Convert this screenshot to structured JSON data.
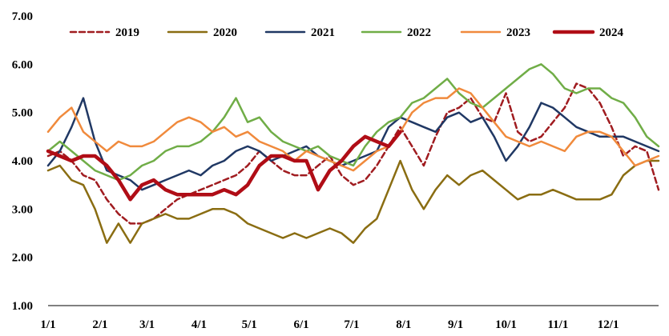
{
  "chart_data": {
    "type": "line",
    "title": "",
    "xlabel": "",
    "ylabel": "",
    "ylim": [
      1.0,
      7.0
    ],
    "yticks": [
      1.0,
      2.0,
      3.0,
      4.0,
      5.0,
      6.0,
      7.0
    ],
    "ytick_labels": [
      "1.00",
      "2.00",
      "3.00",
      "4.00",
      "5.00",
      "6.00",
      "7.00"
    ],
    "xlim": [
      1,
      53
    ],
    "xticks": [
      1,
      5.43,
      9.43,
      13.86,
      18.14,
      22.57,
      26.86,
      31.29,
      35.71,
      40,
      44.43,
      48.71
    ],
    "xtick_labels": [
      "1/1",
      "2/1",
      "3/1",
      "4/1",
      "5/1",
      "6/1",
      "7/1",
      "8/1",
      "9/1",
      "10/1",
      "11/1",
      "12/1"
    ],
    "grid": false,
    "legend_position": "top",
    "series": [
      {
        "name": "2019",
        "color": "#a01c20",
        "dash": true,
        "width": 2.5,
        "x": [
          1,
          2,
          3,
          4,
          5,
          6,
          7,
          8,
          9,
          10,
          11,
          12,
          13,
          14,
          15,
          16,
          17,
          18,
          19,
          20,
          21,
          22,
          23,
          24,
          25,
          26,
          27,
          28,
          29,
          30,
          31,
          32,
          33,
          34,
          35,
          36,
          37,
          38,
          39,
          40,
          41,
          42,
          43,
          44,
          45,
          46,
          47,
          48,
          49,
          50,
          51,
          52,
          53
        ],
        "y": [
          4.1,
          4.2,
          4.0,
          3.7,
          3.6,
          3.2,
          2.9,
          2.7,
          2.7,
          2.8,
          3.0,
          3.2,
          3.3,
          3.4,
          3.5,
          3.6,
          3.7,
          3.9,
          4.2,
          4.0,
          3.8,
          3.7,
          3.7,
          3.9,
          4.1,
          3.7,
          3.5,
          3.6,
          3.9,
          4.3,
          4.7,
          4.3,
          3.9,
          4.5,
          5.0,
          5.1,
          5.3,
          4.9,
          4.8,
          5.4,
          4.6,
          4.4,
          4.5,
          4.8,
          5.1,
          5.6,
          5.5,
          5.2,
          4.7,
          4.1,
          4.3,
          4.2,
          3.4
        ]
      },
      {
        "name": "2020",
        "color": "#8a6d12",
        "dash": false,
        "width": 2.5,
        "x": [
          1,
          2,
          3,
          4,
          5,
          6,
          7,
          8,
          9,
          10,
          11,
          12,
          13,
          14,
          15,
          16,
          17,
          18,
          19,
          20,
          21,
          22,
          23,
          24,
          25,
          26,
          27,
          28,
          29,
          30,
          31,
          32,
          33,
          34,
          35,
          36,
          37,
          38,
          39,
          40,
          41,
          42,
          43,
          44,
          45,
          46,
          47,
          48,
          49,
          50,
          51,
          52,
          53
        ],
        "y": [
          3.8,
          3.9,
          3.6,
          3.5,
          3.0,
          2.3,
          2.7,
          2.3,
          2.7,
          2.8,
          2.9,
          2.8,
          2.8,
          2.9,
          3.0,
          3.0,
          2.9,
          2.7,
          2.6,
          2.5,
          2.4,
          2.5,
          2.4,
          2.5,
          2.6,
          2.5,
          2.3,
          2.6,
          2.8,
          3.4,
          4.0,
          3.4,
          3.0,
          3.4,
          3.7,
          3.5,
          3.7,
          3.8,
          3.6,
          3.4,
          3.2,
          3.3,
          3.3,
          3.4,
          3.3,
          3.2,
          3.2,
          3.2,
          3.3,
          3.7,
          3.9,
          4.0,
          4.0
        ]
      },
      {
        "name": "2021",
        "color": "#203864",
        "dash": false,
        "width": 2.5,
        "x": [
          1,
          2,
          3,
          4,
          5,
          6,
          7,
          8,
          9,
          10,
          11,
          12,
          13,
          14,
          15,
          16,
          17,
          18,
          19,
          20,
          21,
          22,
          23,
          24,
          25,
          26,
          27,
          28,
          29,
          30,
          31,
          32,
          33,
          34,
          35,
          36,
          37,
          38,
          39,
          40,
          41,
          42,
          43,
          44,
          45,
          46,
          47,
          48,
          49,
          50,
          51,
          52,
          53
        ],
        "y": [
          3.9,
          4.2,
          4.7,
          5.3,
          4.4,
          3.8,
          3.7,
          3.6,
          3.4,
          3.5,
          3.6,
          3.7,
          3.8,
          3.7,
          3.9,
          4.0,
          4.2,
          4.3,
          4.2,
          4.0,
          4.1,
          4.2,
          4.3,
          4.1,
          4.0,
          3.9,
          4.0,
          4.1,
          4.2,
          4.7,
          4.9,
          4.8,
          4.7,
          4.6,
          4.9,
          5.0,
          4.8,
          4.9,
          4.5,
          4.0,
          4.3,
          4.7,
          5.2,
          5.1,
          4.9,
          4.7,
          4.6,
          4.5,
          4.5,
          4.5,
          4.4,
          4.3,
          4.2
        ]
      },
      {
        "name": "2022",
        "color": "#70ad47",
        "dash": false,
        "width": 2.5,
        "x": [
          1,
          2,
          3,
          4,
          5,
          6,
          7,
          8,
          9,
          10,
          11,
          12,
          13,
          14,
          15,
          16,
          17,
          18,
          19,
          20,
          21,
          22,
          23,
          24,
          25,
          26,
          27,
          28,
          29,
          30,
          31,
          32,
          33,
          34,
          35,
          36,
          37,
          38,
          39,
          40,
          41,
          42,
          43,
          44,
          45,
          46,
          47,
          48,
          49,
          50,
          51,
          52,
          53
        ],
        "y": [
          4.2,
          4.4,
          4.2,
          4.0,
          3.8,
          3.7,
          3.6,
          3.7,
          3.9,
          4.0,
          4.2,
          4.3,
          4.3,
          4.4,
          4.6,
          4.9,
          5.3,
          4.8,
          4.9,
          4.6,
          4.4,
          4.3,
          4.2,
          4.3,
          4.1,
          4.0,
          3.9,
          4.3,
          4.6,
          4.8,
          4.9,
          5.2,
          5.3,
          5.5,
          5.7,
          5.4,
          5.2,
          5.1,
          5.3,
          5.5,
          5.7,
          5.9,
          6.0,
          5.8,
          5.5,
          5.4,
          5.5,
          5.5,
          5.3,
          5.2,
          4.9,
          4.5,
          4.3
        ]
      },
      {
        "name": "2023",
        "color": "#f08a3c",
        "dash": false,
        "width": 2.5,
        "x": [
          1,
          2,
          3,
          4,
          5,
          6,
          7,
          8,
          9,
          10,
          11,
          12,
          13,
          14,
          15,
          16,
          17,
          18,
          19,
          20,
          21,
          22,
          23,
          24,
          25,
          26,
          27,
          28,
          29,
          30,
          31,
          32,
          33,
          34,
          35,
          36,
          37,
          38,
          39,
          40,
          41,
          42,
          43,
          44,
          45,
          46,
          47,
          48,
          49,
          50,
          51,
          52,
          53
        ],
        "y": [
          4.6,
          4.9,
          5.1,
          4.6,
          4.4,
          4.2,
          4.4,
          4.3,
          4.3,
          4.4,
          4.6,
          4.8,
          4.9,
          4.8,
          4.6,
          4.7,
          4.5,
          4.6,
          4.4,
          4.3,
          4.2,
          4.0,
          4.2,
          4.1,
          4.0,
          3.9,
          3.8,
          4.0,
          4.2,
          4.3,
          4.6,
          5.0,
          5.2,
          5.3,
          5.3,
          5.5,
          5.4,
          5.1,
          4.8,
          4.5,
          4.4,
          4.3,
          4.4,
          4.3,
          4.2,
          4.5,
          4.6,
          4.6,
          4.5,
          4.2,
          3.9,
          4.0,
          4.1
        ]
      },
      {
        "name": "2024",
        "color": "#b00d16",
        "dash": false,
        "width": 4.5,
        "x": [
          1,
          2,
          3,
          4,
          5,
          6,
          7,
          8,
          9,
          10,
          11,
          12,
          13,
          14,
          15,
          16,
          17,
          18,
          19,
          20,
          21,
          22,
          23,
          24,
          25,
          26,
          27,
          28,
          29,
          30,
          31
        ],
        "y": [
          4.2,
          4.1,
          4.0,
          4.1,
          4.1,
          3.9,
          3.6,
          3.2,
          3.5,
          3.6,
          3.4,
          3.3,
          3.3,
          3.3,
          3.3,
          3.4,
          3.3,
          3.5,
          3.9,
          4.1,
          4.1,
          4.0,
          4.0,
          3.4,
          3.8,
          4.0,
          4.3,
          4.5,
          4.4,
          4.3,
          4.6
        ]
      }
    ]
  }
}
